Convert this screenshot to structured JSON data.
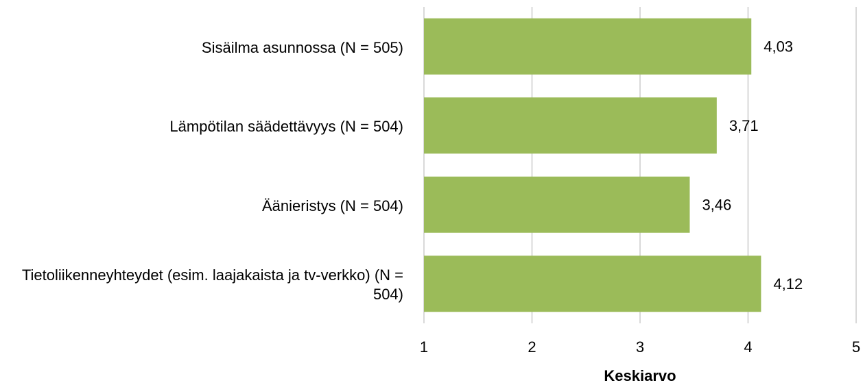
{
  "chart_data": {
    "type": "barh",
    "categories": [
      "Sisäilma asunnossa (N = 505)",
      "Lämpötilan säädettävyys (N = 504)",
      "Äänieristys (N = 504)",
      "Tietoliikenneyhteydet (esim. laajakaista ja tv-verkko) (N = 504)"
    ],
    "values": [
      4.03,
      3.71,
      3.46,
      4.12
    ],
    "value_labels": [
      "4,03",
      "3,71",
      "3,46",
      "4,12"
    ],
    "color": "#9bbb59",
    "xlabel": "Keskiarvo",
    "xlim": [
      1,
      5
    ],
    "xticks": [
      1,
      2,
      3,
      4,
      5
    ],
    "grid": true
  }
}
